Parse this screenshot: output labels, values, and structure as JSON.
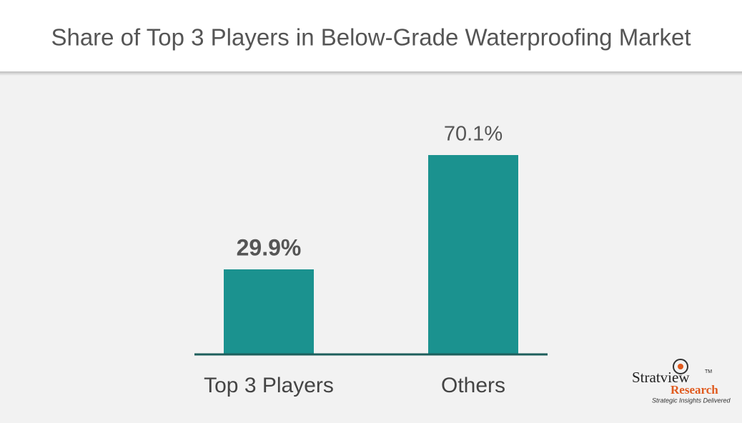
{
  "chart_data": {
    "type": "bar",
    "title": "Share of Top 3 Players in Below-Grade Waterproofing Market",
    "categories": [
      "Top 3 Players",
      "Others"
    ],
    "values": [
      29.9,
      70.1
    ],
    "value_labels": [
      "29.9%",
      "70.1%"
    ],
    "color": "#1b928f"
  },
  "logo": {
    "name": "Stratview",
    "trademark": "TM",
    "subname": "Research",
    "tagline": "Strategic Insights Delivered"
  }
}
